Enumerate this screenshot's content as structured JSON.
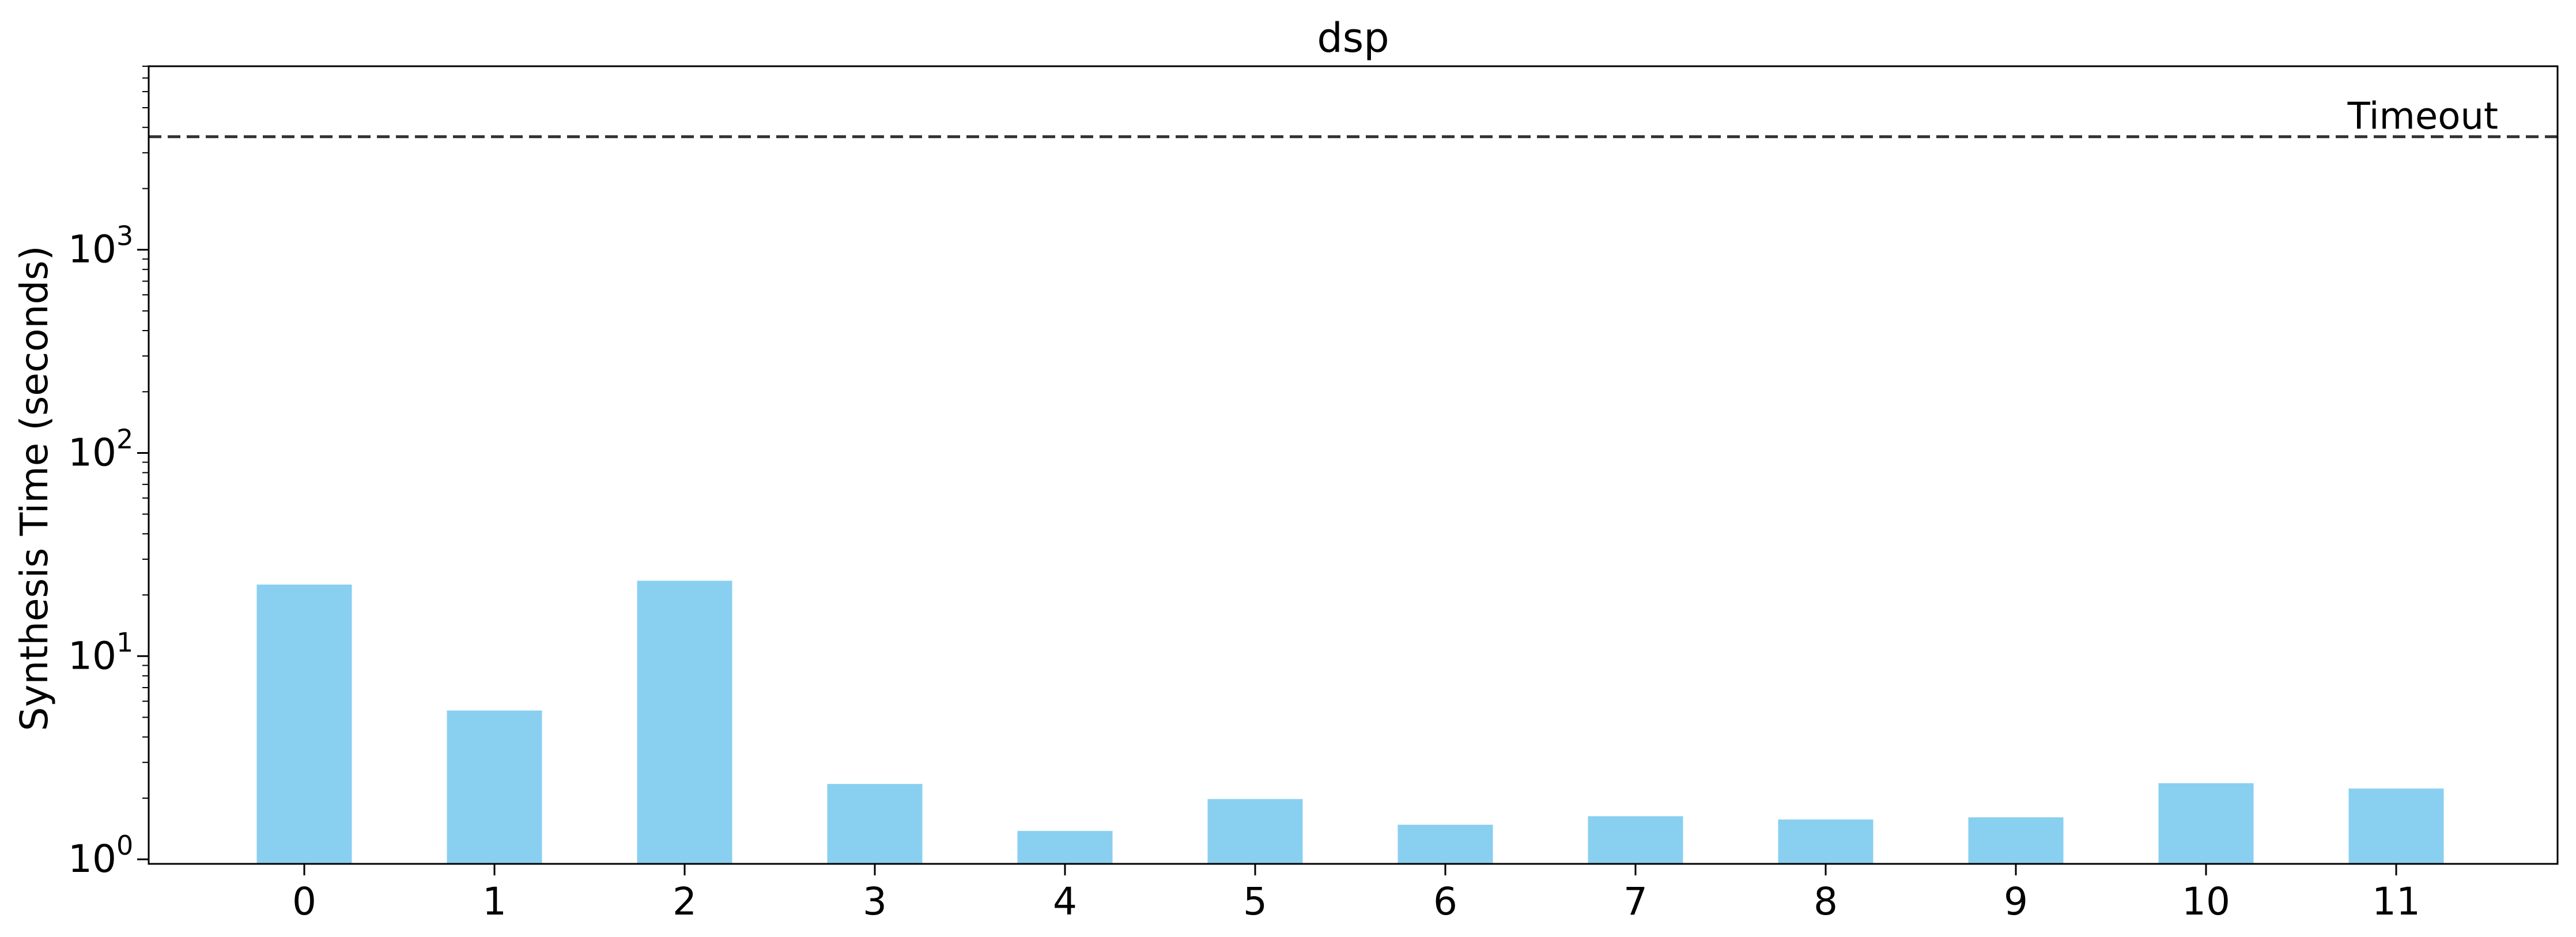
{
  "chart_data": {
    "type": "bar",
    "title": "dsp",
    "xlabel": "",
    "ylabel": "Synthesis Time (seconds)",
    "yscale": "log",
    "ylim": [
      0.95,
      8000
    ],
    "categories": [
      "0",
      "1",
      "2",
      "3",
      "4",
      "5",
      "6",
      "7",
      "8",
      "9",
      "10",
      "11"
    ],
    "values": [
      22.5,
      5.4,
      23.5,
      2.35,
      1.38,
      1.98,
      1.48,
      1.63,
      1.57,
      1.61,
      2.37,
      2.23
    ],
    "bar_color": "#89CFF0",
    "y_ticks": [
      {
        "base": "10",
        "exp": "0",
        "value": 1
      },
      {
        "base": "10",
        "exp": "1",
        "value": 10
      },
      {
        "base": "10",
        "exp": "2",
        "value": 100
      },
      {
        "base": "10",
        "exp": "3",
        "value": 1000
      }
    ],
    "threshold": {
      "value": 3600,
      "label": "Timeout",
      "style": "dashed",
      "color": "#333333"
    },
    "grid": false,
    "legend": "none"
  }
}
